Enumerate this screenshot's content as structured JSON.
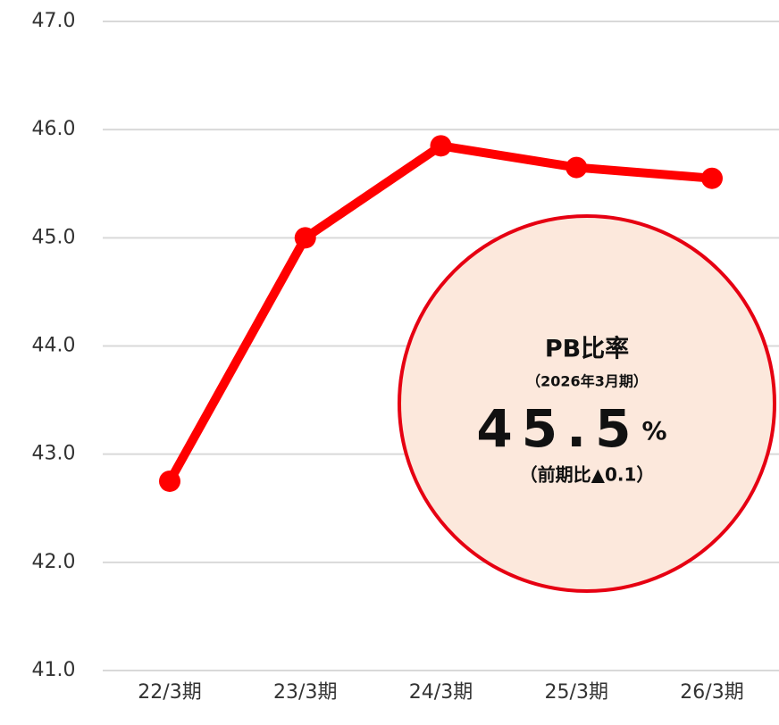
{
  "chart_data": {
    "type": "line",
    "categories": [
      "22/3期",
      "23/3期",
      "24/3期",
      "25/3期",
      "26/3期"
    ],
    "values": [
      42.75,
      45.0,
      45.85,
      45.65,
      45.55
    ],
    "color": "#ff0000",
    "ylim": [
      41,
      47
    ],
    "yticks": [
      {
        "value": 41,
        "label": "41.0"
      },
      {
        "value": 42,
        "label": "42.0"
      },
      {
        "value": 43,
        "label": "43.0"
      },
      {
        "value": 44,
        "label": "44.0"
      },
      {
        "value": 45,
        "label": "45.0"
      },
      {
        "value": 46,
        "label": "46.0"
      },
      {
        "value": 47,
        "label": "47.0"
      }
    ],
    "grid": true,
    "annotation": {
      "title": "PB比率",
      "period": "（2026年3月期）",
      "value": 45.5,
      "unit": "%",
      "change": "（前期比▲0.1）"
    }
  }
}
